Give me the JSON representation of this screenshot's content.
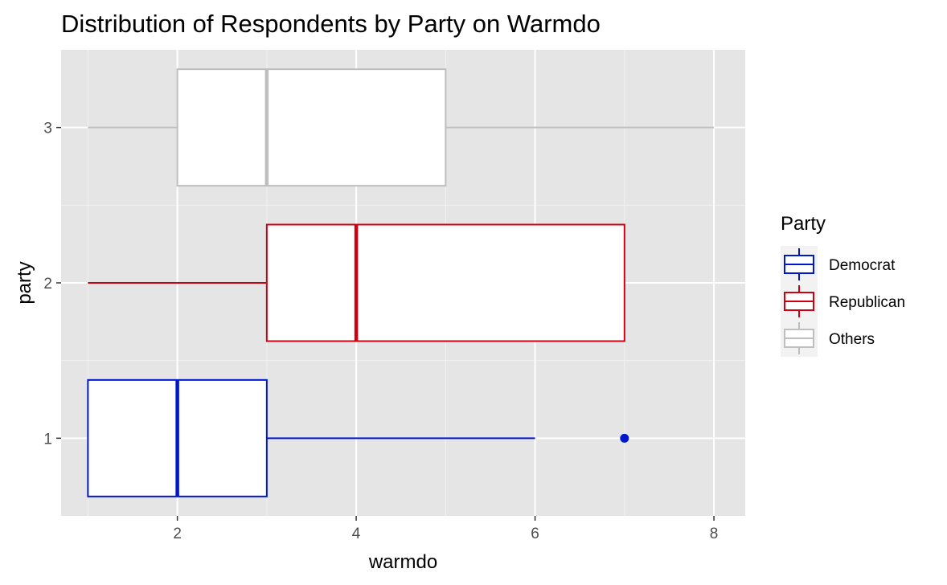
{
  "chart_data": {
    "type": "boxplot",
    "orientation": "horizontal",
    "title": "Distribution of Respondents by Party on Warmdo",
    "xlabel": "warmdo",
    "ylabel": "party",
    "xlim": [
      0.7,
      8.35
    ],
    "ylim": [
      0.5,
      3.5
    ],
    "x_ticks": [
      2,
      4,
      6,
      8
    ],
    "y_ticks": [
      1,
      2,
      3
    ],
    "grid": true,
    "legend": {
      "title": "Party",
      "placement": "right"
    },
    "series": [
      {
        "name": "Democrat",
        "y": 1,
        "color": "#0018cc",
        "whisker_low": 1,
        "q1": 1,
        "median": 2,
        "q3": 3,
        "whisker_high": 6,
        "outliers": [
          7
        ]
      },
      {
        "name": "Republican",
        "y": 2,
        "color": "#cc0011",
        "whisker_low": 1,
        "q1": 3,
        "median": 4,
        "q3": 7,
        "whisker_high": 7,
        "outliers": []
      },
      {
        "name": "Others",
        "y": 3,
        "color": "#bebebe",
        "whisker_low": 1,
        "q1": 2,
        "median": 3,
        "q3": 5,
        "whisker_high": 8,
        "outliers": []
      }
    ]
  }
}
